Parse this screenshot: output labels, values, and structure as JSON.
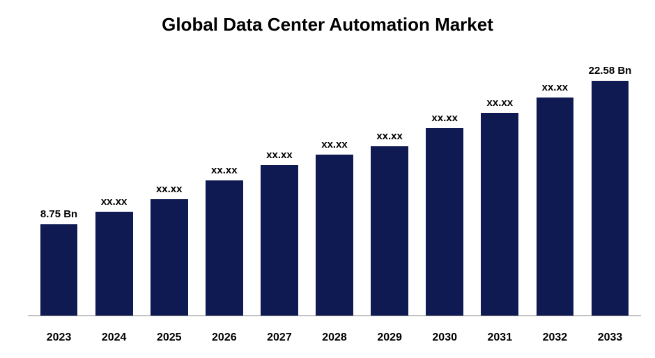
{
  "chart": {
    "type": "bar",
    "title": "Global Data Center Automation Market",
    "title_fontsize": 26,
    "title_color": "#000000",
    "background_color": "#ffffff",
    "axis_color": "#808080",
    "categories": [
      "2023",
      "2024",
      "2025",
      "2026",
      "2027",
      "2028",
      "2029",
      "2030",
      "2031",
      "2032",
      "2033"
    ],
    "values": [
      8.75,
      10.0,
      11.2,
      13.0,
      14.5,
      15.5,
      16.3,
      18.0,
      19.5,
      21.0,
      22.58
    ],
    "bar_labels": [
      "8.75 Bn",
      "xx.xx",
      "xx.xx",
      "xx.xx",
      "xx.xx",
      "xx.xx",
      "xx.xx",
      "xx.xx",
      "xx.xx",
      "xx.xx",
      "22.58 Bn"
    ],
    "bar_color": "#0f1a52",
    "bar_width": 0.68,
    "ylim": [
      0,
      25
    ],
    "label_fontsize": 15,
    "label_color": "#000000",
    "xlabel_fontsize": 16,
    "xlabel_color": "#000000"
  }
}
